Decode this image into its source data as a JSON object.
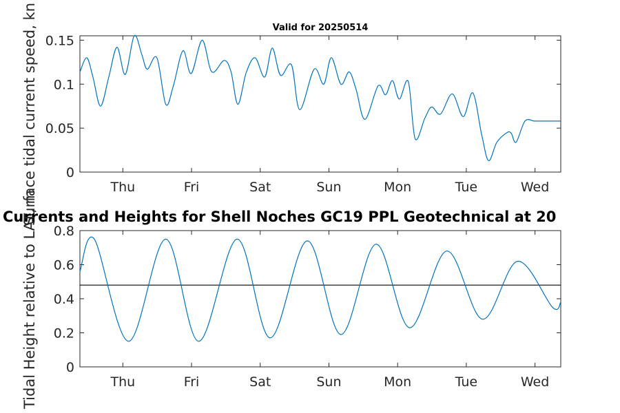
{
  "colors": {
    "series": "#0072BD",
    "mean_line": "#000000",
    "axes": "#262626"
  },
  "chart_data": [
    {
      "type": "line",
      "title": "Valid for 20250514",
      "xlabel": "",
      "ylabel": "Surface tidal current speed, kn",
      "xlim": [
        0,
        7
      ],
      "ylim": [
        0,
        0.155
      ],
      "x_ticks": [
        0.625,
        1.625,
        2.625,
        3.625,
        4.625,
        5.625,
        6.625
      ],
      "x_tick_labels": [
        "Thu",
        "Fri",
        "Sat",
        "Sun",
        "Mon",
        "Tue",
        "Wed"
      ],
      "y_ticks": [
        0,
        0.05,
        0.1,
        0.15
      ],
      "y_tick_labels": [
        "0",
        "0.05",
        "0.1",
        "0.15"
      ],
      "grid": false,
      "series": [
        {
          "x": [
            0,
            0.1,
            0.19,
            0.3,
            0.42,
            0.54,
            0.66,
            0.79,
            0.9,
            0.98,
            1.12,
            1.25,
            1.36,
            1.5,
            1.62,
            1.78,
            1.92,
            2.1,
            2.2,
            2.3,
            2.42,
            2.55,
            2.69,
            2.8,
            2.92,
            3.08,
            3.2,
            3.41,
            3.55,
            3.66,
            3.8,
            3.92,
            4.02,
            4.15,
            4.34,
            4.45,
            4.55,
            4.65,
            4.78,
            4.88,
            5.02,
            5.12,
            5.25,
            5.42,
            5.58,
            5.72,
            5.85,
            5.95,
            6.07,
            6.22,
            6.28,
            6.35,
            6.48,
            6.62,
            6.75,
            6.85,
            7.0
          ],
          "y": [
            0.114,
            0.13,
            0.108,
            0.075,
            0.108,
            0.142,
            0.111,
            0.155,
            0.134,
            0.117,
            0.13,
            0.077,
            0.098,
            0.138,
            0.112,
            0.15,
            0.114,
            0.127,
            0.114,
            0.077,
            0.113,
            0.13,
            0.108,
            0.141,
            0.11,
            0.122,
            0.071,
            0.117,
            0.1,
            0.13,
            0.1,
            0.114,
            0.094,
            0.06,
            0.098,
            0.088,
            0.104,
            0.083,
            0.103,
            0.038,
            0.061,
            0.074,
            0.066,
            0.089,
            0.063,
            0.09,
            0.042,
            0.013,
            0.034,
            0.045,
            0.044,
            0.034,
            0.058,
            0.058,
            0.058,
            0.058,
            0.058
          ]
        }
      ]
    },
    {
      "type": "line",
      "title": "Currents and Heights for Shell Noches   GC19 PPL  Geotechnical at 20",
      "xlabel": "",
      "ylabel": "Tidal Height relative to LAT, m",
      "xlim": [
        0,
        7
      ],
      "ylim": [
        0,
        0.8
      ],
      "x_ticks": [
        0.625,
        1.625,
        2.625,
        3.625,
        4.625,
        5.625,
        6.625
      ],
      "x_tick_labels": [
        "Thu",
        "Fri",
        "Sat",
        "Sun",
        "Mon",
        "Tue",
        "Wed"
      ],
      "y_ticks": [
        0,
        0.2,
        0.4,
        0.6,
        0.8
      ],
      "y_tick_labels": [
        "0",
        "0.2",
        "0.4",
        "0.6",
        "0.8"
      ],
      "grid": false,
      "reference_line": 0.48,
      "series": [
        {
          "x": [
            0,
            0.21,
            0.71,
            1.25,
            1.73,
            2.29,
            2.77,
            3.31,
            3.8,
            4.31,
            4.8,
            5.34,
            5.86,
            6.37,
            6.88,
            7.0
          ],
          "y": [
            0.56,
            0.75,
            0.15,
            0.75,
            0.15,
            0.75,
            0.17,
            0.74,
            0.19,
            0.72,
            0.23,
            0.68,
            0.28,
            0.62,
            0.35,
            0.38
          ]
        }
      ]
    }
  ]
}
